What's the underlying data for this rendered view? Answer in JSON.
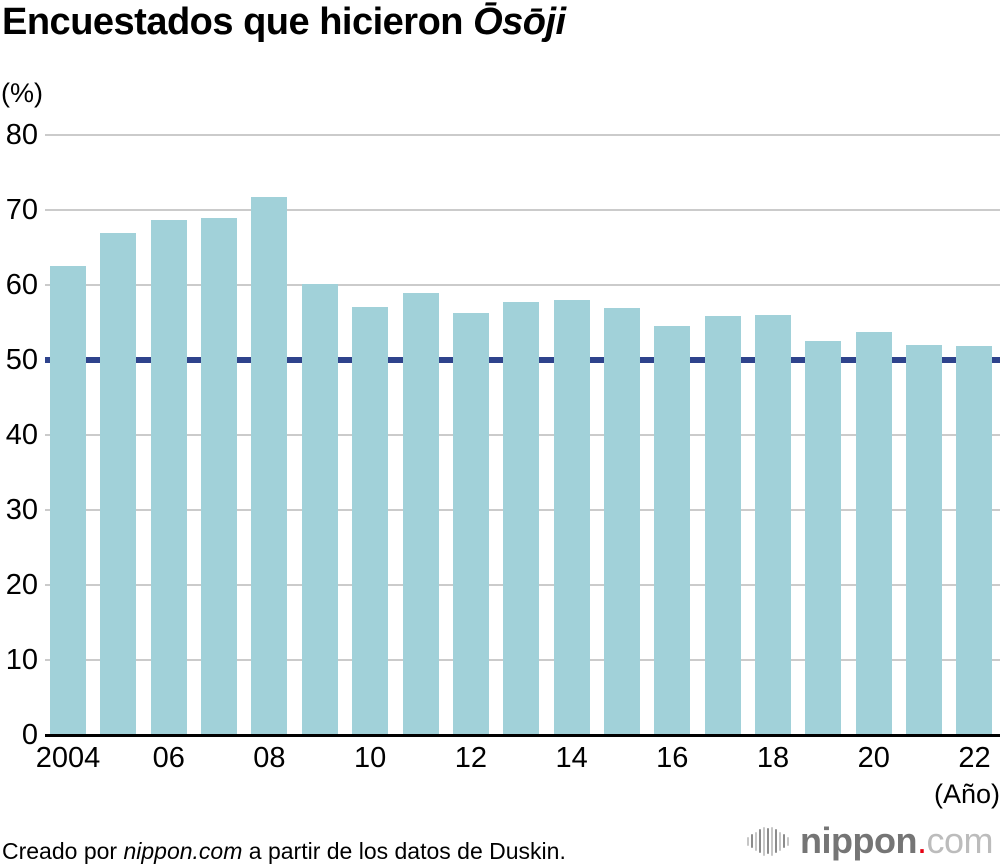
{
  "title": {
    "text_regular": "Encuestados que hicieron ",
    "text_italic": "Ōsōji"
  },
  "axes": {
    "y_unit_label": "(%)",
    "x_unit_label": "(Año)"
  },
  "footer": {
    "credit_prefix": "Creado por ",
    "credit_source": "nippon.com",
    "credit_suffix": " a partir de los datos de Duskin."
  },
  "logo": {
    "word": "nippon",
    "dot": ".",
    "tld": "com",
    "icon": "soundwave-bars-icon"
  },
  "colors": {
    "bar": "#a1d1d9",
    "reference_line": "#2f438c",
    "gridline": "#cbcbcb",
    "axis": "#000000",
    "logo_word": "#757575",
    "logo_tld": "#bcbcbc",
    "logo_dot": "#e60012",
    "logo_icon_dark": "#8c8c8c",
    "logo_icon_light": "#c6c6c6"
  },
  "chart_data": {
    "type": "bar",
    "title": "Encuestados que hicieron Ōsōji",
    "ylabel": "(%)",
    "xlabel": "(Año)",
    "ylim": [
      0,
      80
    ],
    "yticks": [
      0,
      10,
      20,
      30,
      40,
      50,
      60,
      70,
      80
    ],
    "grid": true,
    "legend": "none",
    "reference_line_y": 50,
    "categories": [
      "2004",
      "2005",
      "2006",
      "2007",
      "2008",
      "2009",
      "2010",
      "2011",
      "2012",
      "2013",
      "2014",
      "2015",
      "2016",
      "2017",
      "2018",
      "2019",
      "2020",
      "2021",
      "2022"
    ],
    "x_tick_labels": [
      "2004",
      "06",
      "08",
      "10",
      "12",
      "14",
      "16",
      "18",
      "20",
      "22"
    ],
    "values": [
      62.6,
      66.9,
      68.7,
      68.9,
      71.7,
      60.2,
      57.1,
      58.9,
      56.3,
      57.8,
      58.0,
      57.0,
      54.6,
      55.9,
      56.0,
      52.6,
      53.7,
      52.0,
      51.9
    ]
  }
}
